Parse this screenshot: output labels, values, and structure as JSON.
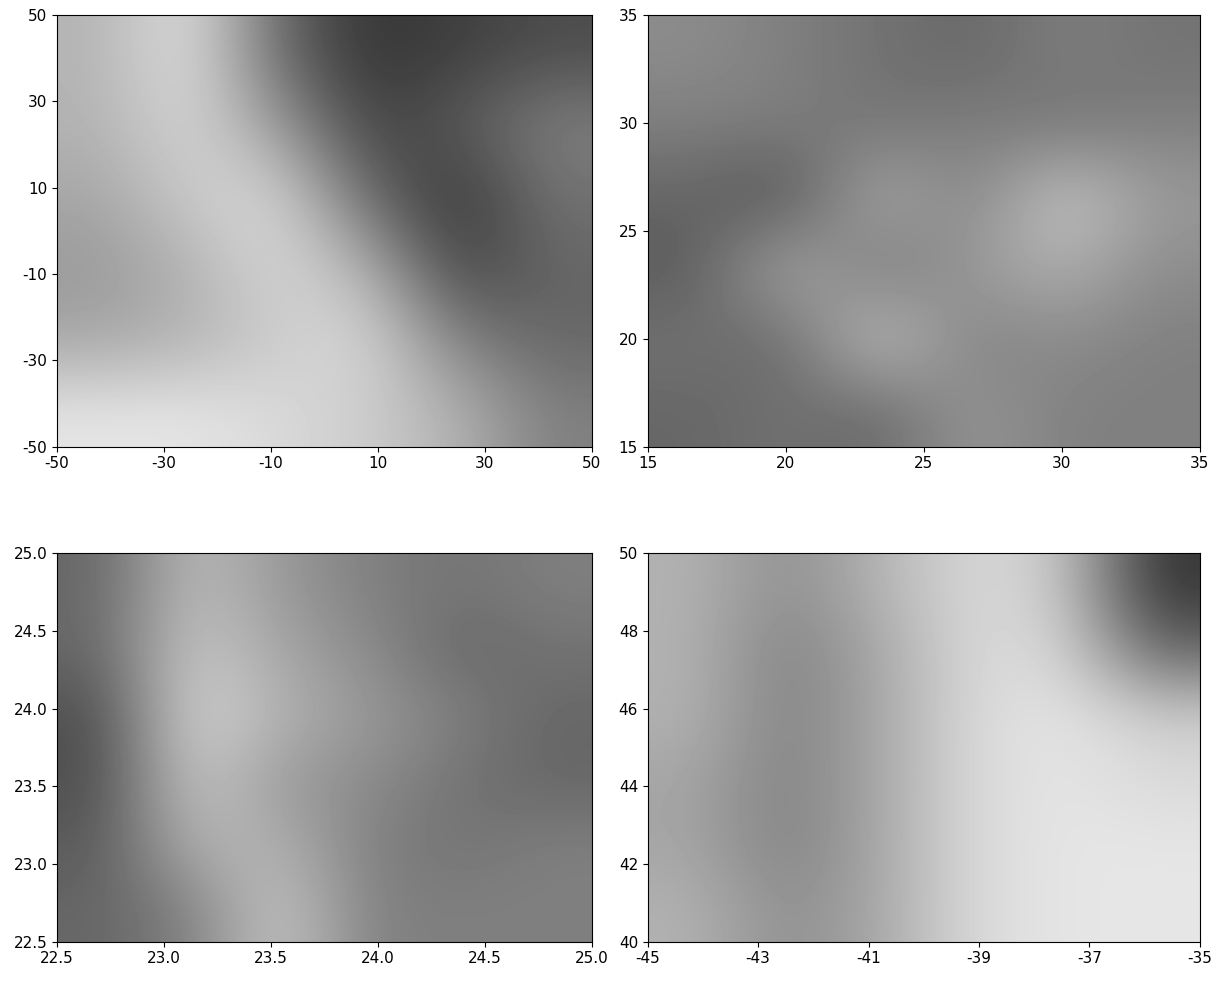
{
  "chart_data": [
    {
      "type": "heatmap",
      "xlim": [
        -50,
        50
      ],
      "ylim": [
        -50,
        50
      ],
      "xticks": [
        -50,
        -30,
        -10,
        10,
        30,
        50
      ],
      "yticks": [
        -50,
        -30,
        -10,
        10,
        30,
        50
      ],
      "cell_range": [
        0,
        1
      ],
      "cells": [
        [
          0.1,
          0.1,
          0.15,
          0.2,
          0.3,
          0.5
        ],
        [
          0.35,
          0.3,
          0.2,
          0.15,
          0.5,
          0.6
        ],
        [
          0.4,
          0.3,
          0.15,
          0.3,
          0.75,
          0.6
        ],
        [
          0.35,
          0.2,
          0.15,
          0.6,
          0.8,
          0.55
        ],
        [
          0.3,
          0.15,
          0.4,
          0.75,
          0.65,
          0.5
        ],
        [
          0.3,
          0.1,
          0.6,
          0.8,
          0.75,
          0.7
        ]
      ]
    },
    {
      "type": "heatmap",
      "xlim": [
        15,
        35
      ],
      "ylim": [
        15,
        35
      ],
      "xticks": [
        15,
        20,
        25,
        30,
        35
      ],
      "yticks": [
        15,
        20,
        25,
        30,
        35
      ],
      "cell_range": [
        0,
        1
      ],
      "cells": [
        [
          0.6,
          0.55,
          0.6,
          0.4,
          0.5,
          0.5
        ],
        [
          0.55,
          0.6,
          0.2,
          0.5,
          0.45,
          0.5
        ],
        [
          0.65,
          0.3,
          0.55,
          0.4,
          0.3,
          0.45
        ],
        [
          0.6,
          0.7,
          0.3,
          0.5,
          0.2,
          0.4
        ],
        [
          0.5,
          0.5,
          0.55,
          0.5,
          0.55,
          0.5
        ],
        [
          0.45,
          0.5,
          0.55,
          0.6,
          0.5,
          0.55
        ]
      ]
    },
    {
      "type": "heatmap",
      "xlim": [
        22.5,
        25.0
      ],
      "ylim": [
        22.5,
        25.0
      ],
      "xticks": [
        22.5,
        {
          "value": 23,
          "label": "23.0"
        },
        23.5,
        {
          "value": 24,
          "label": "24.0"
        },
        24.5,
        {
          "value": 25,
          "label": "25.0"
        }
      ],
      "yticks": [
        22.5,
        {
          "value": 23,
          "label": "23.0"
        },
        23.5,
        {
          "value": 24,
          "label": "24.0"
        },
        24.5,
        {
          "value": 25,
          "label": "25.0"
        }
      ],
      "cell_range": [
        0,
        1
      ],
      "cells": [
        [
          0.6,
          0.5,
          0.2,
          0.5,
          0.5,
          0.5
        ],
        [
          0.65,
          0.3,
          0.3,
          0.5,
          0.55,
          0.5
        ],
        [
          0.7,
          0.2,
          0.4,
          0.45,
          0.55,
          0.6
        ],
        [
          0.7,
          0.15,
          0.3,
          0.4,
          0.5,
          0.6
        ],
        [
          0.6,
          0.2,
          0.35,
          0.45,
          0.6,
          0.55
        ],
        [
          0.6,
          0.25,
          0.4,
          0.5,
          0.55,
          0.5
        ]
      ]
    },
    {
      "type": "heatmap",
      "xlim": [
        -45,
        -35
      ],
      "ylim": [
        40,
        50
      ],
      "xticks": [
        -45,
        -43,
        -41,
        -39,
        -37,
        -35
      ],
      "yticks": [
        40,
        42,
        44,
        46,
        48,
        50
      ],
      "cell_range": [
        0,
        1
      ],
      "cells": [
        [
          0.3,
          0.45,
          0.35,
          0.15,
          0.1,
          0.1
        ],
        [
          0.35,
          0.5,
          0.35,
          0.15,
          0.1,
          0.1
        ],
        [
          0.35,
          0.5,
          0.35,
          0.15,
          0.1,
          0.15
        ],
        [
          0.3,
          0.5,
          0.35,
          0.15,
          0.1,
          0.2
        ],
        [
          0.3,
          0.5,
          0.35,
          0.15,
          0.15,
          0.6
        ],
        [
          0.3,
          0.45,
          0.3,
          0.15,
          0.2,
          0.8
        ]
      ]
    }
  ]
}
